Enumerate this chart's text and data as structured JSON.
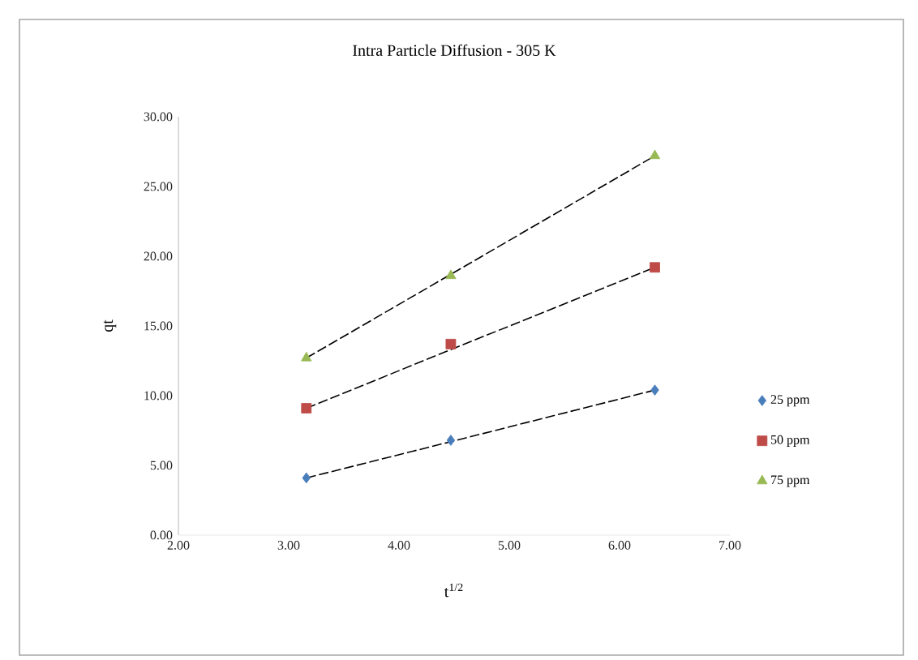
{
  "chart_data": {
    "type": "scatter",
    "title": "Intra Particle Diffusion - 305 K",
    "xlabel": "t$^{1/2}$",
    "ylabel": "qt",
    "xlim": [
      2,
      7
    ],
    "xticks": [
      {
        "value": 2,
        "label": "2.00"
      },
      {
        "value": 3,
        "label": "3.00"
      },
      {
        "value": 4,
        "label": "4.00"
      },
      {
        "value": 5,
        "label": "5.00"
      },
      {
        "value": 6,
        "label": "6.00"
      },
      {
        "value": 7,
        "label": "7.00"
      }
    ],
    "ylim": [
      0,
      30
    ],
    "yticks": [
      {
        "value": 0,
        "label": "0.00"
      },
      {
        "value": 5,
        "label": "5.00"
      },
      {
        "value": 10,
        "label": "10.00"
      },
      {
        "value": 15,
        "label": "15.00"
      },
      {
        "value": 20,
        "label": "20.00"
      },
      {
        "value": 25,
        "label": "25.00"
      },
      {
        "value": 30,
        "label": "30.00"
      }
    ],
    "x": [
      3.16,
      4.47,
      6.32
    ],
    "legend": "right",
    "grid": false,
    "series": [
      {
        "name": "25 ppm",
        "color": "#4a7ebb",
        "marker": "diamond",
        "values": [
          4.1,
          6.8,
          10.4
        ]
      },
      {
        "name": "50 ppm",
        "color": "#be4b48",
        "marker": "square",
        "values": [
          9.1,
          13.7,
          19.2
        ]
      },
      {
        "name": "75 ppm",
        "color": "#98b954",
        "marker": "triangle",
        "values": [
          12.7,
          18.6,
          27.2
        ]
      },
      {
        "type": "line",
        "color": "#000000",
        "line_style": "dashed",
        "marker": "none",
        "values": [
          4.1,
          6.7,
          10.4
        ]
      },
      {
        "type": "line",
        "color": "#000000",
        "line_style": "dashed",
        "marker": "none",
        "values": [
          9.1,
          13.3,
          19.2
        ]
      },
      {
        "type": "line",
        "color": "#000000",
        "line_style": "dashed",
        "marker": "none",
        "values": [
          12.7,
          18.7,
          27.2
        ]
      }
    ]
  }
}
